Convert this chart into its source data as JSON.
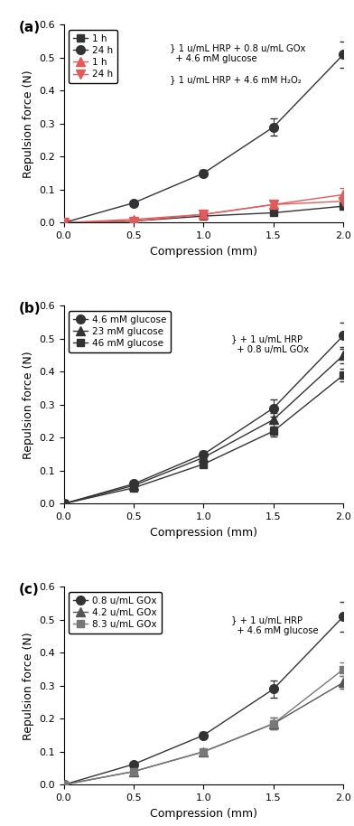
{
  "panel_a": {
    "title": "(a)",
    "x": [
      0,
      0.5,
      1.0,
      1.5,
      2.0
    ],
    "series": [
      {
        "label": "1 h",
        "y": [
          0,
          0.005,
          0.02,
          0.03,
          0.05
        ],
        "yerr": [
          0,
          0.003,
          0.005,
          0.005,
          0.008
        ],
        "color": "#333333",
        "marker": "s",
        "markersize": 6,
        "linestyle": "-"
      },
      {
        "label": "24 h",
        "y": [
          0,
          0.06,
          0.15,
          0.29,
          0.51
        ],
        "yerr": [
          0,
          0.005,
          0.01,
          0.025,
          0.04
        ],
        "color": "#333333",
        "marker": "o",
        "markersize": 7,
        "linestyle": "-"
      },
      {
        "label": "1 h",
        "y": [
          0,
          0.01,
          0.025,
          0.055,
          0.085
        ],
        "yerr": [
          0,
          0.003,
          0.005,
          0.012,
          0.02
        ],
        "color": "#e05c5c",
        "marker": "^",
        "markersize": 7,
        "linestyle": "-"
      },
      {
        "label": "24 h",
        "y": [
          0,
          0.005,
          0.025,
          0.055,
          0.065
        ],
        "yerr": [
          0,
          0.003,
          0.005,
          0.01,
          0.012
        ],
        "color": "#e05c5c",
        "marker": "v",
        "markersize": 7,
        "linestyle": "-"
      }
    ]
  },
  "panel_b": {
    "title": "(b)",
    "x": [
      0,
      0.5,
      1.0,
      1.5,
      2.0
    ],
    "series": [
      {
        "label": "4.6 mM glucose",
        "y": [
          0,
          0.06,
          0.15,
          0.29,
          0.51
        ],
        "yerr": [
          0,
          0.005,
          0.01,
          0.025,
          0.04
        ],
        "color": "#333333",
        "marker": "o",
        "markersize": 7,
        "linestyle": "-"
      },
      {
        "label": "23 mM glucose",
        "y": [
          0,
          0.055,
          0.14,
          0.255,
          0.45
        ],
        "yerr": [
          0,
          0.005,
          0.008,
          0.02,
          0.025
        ],
        "color": "#333333",
        "marker": "^",
        "markersize": 7,
        "linestyle": "-"
      },
      {
        "label": "46 mM glucose",
        "y": [
          0,
          0.048,
          0.12,
          0.22,
          0.39
        ],
        "yerr": [
          0,
          0.005,
          0.008,
          0.015,
          0.02
        ],
        "color": "#333333",
        "marker": "s",
        "markersize": 6,
        "linestyle": "-"
      }
    ],
    "legend_text1": "} + 1 u/mL HRP",
    "legend_text2": "  + 0.8 u/mL GOx"
  },
  "panel_c": {
    "title": "(c)",
    "x": [
      0,
      0.5,
      1.0,
      1.5,
      2.0
    ],
    "series": [
      {
        "label": "0.8 u/mL GOx",
        "y": [
          0,
          0.062,
          0.15,
          0.29,
          0.51
        ],
        "yerr": [
          0,
          0.005,
          0.01,
          0.025,
          0.045
        ],
        "color": "#333333",
        "marker": "o",
        "markersize": 7,
        "linestyle": "-"
      },
      {
        "label": "4.2 u/mL GOx",
        "y": [
          0,
          0.04,
          0.1,
          0.185,
          0.31
        ],
        "yerr": [
          0,
          0.004,
          0.008,
          0.018,
          0.02
        ],
        "color": "#555555",
        "marker": "^",
        "markersize": 7,
        "linestyle": "-"
      },
      {
        "label": "8.3 u/mL GOx",
        "y": [
          0,
          0.04,
          0.1,
          0.185,
          0.35
        ],
        "yerr": [
          0,
          0.004,
          0.008,
          0.018,
          0.02
        ],
        "color": "#777777",
        "marker": "s",
        "markersize": 6,
        "linestyle": "-"
      }
    ],
    "legend_text1": "} + 1 u/mL HRP",
    "legend_text2": "  + 4.6 mM glucose"
  },
  "ylim": [
    0,
    0.6
  ],
  "xlim": [
    0,
    2.0
  ],
  "xlabel": "Compression (mm)",
  "ylabel": "Repulsion force (N)",
  "legend_a_line1_black": "} 1 u/mL HRP + 0.8 u/mL GOx",
  "legend_a_line2_black": "  + 4.6 mM glucose",
  "legend_a_line1_red": "} 1 u/mL HRP + 4.6 mM H₂O₂"
}
